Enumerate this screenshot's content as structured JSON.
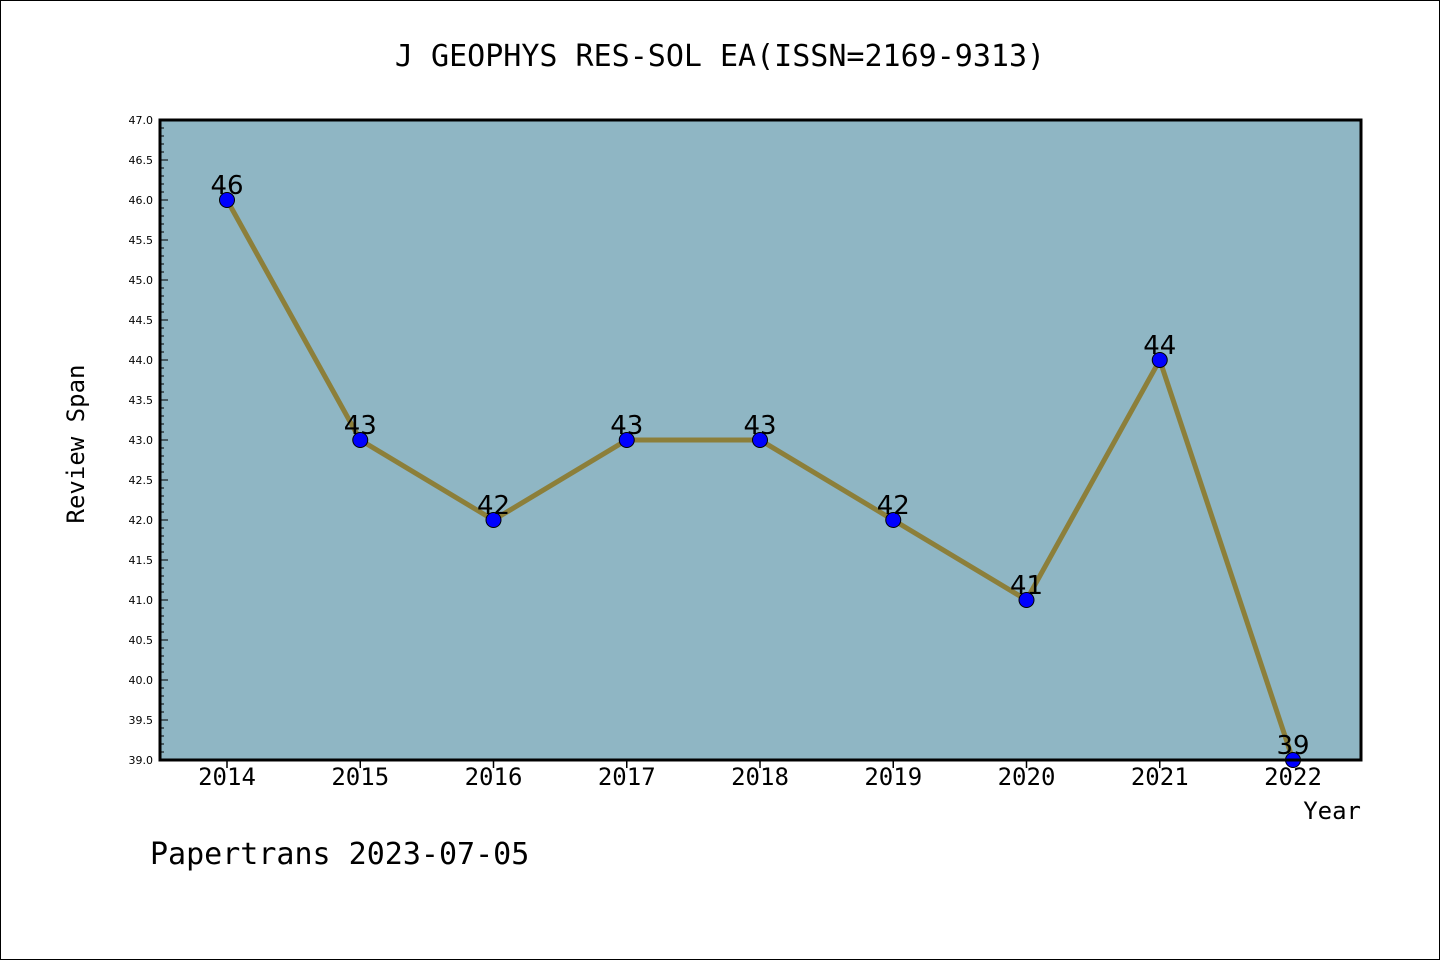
{
  "chart_data": {
    "type": "line",
    "title": "J GEOPHYS RES-SOL EA(ISSN=2169-9313)",
    "xlabel": "Year",
    "ylabel": "Review Span",
    "categories": [
      "2014",
      "2015",
      "2016",
      "2017",
      "2018",
      "2019",
      "2020",
      "2021",
      "2022"
    ],
    "series": [
      {
        "values": [
          46,
          43,
          42,
          43,
          43,
          42,
          41,
          44,
          39
        ]
      }
    ],
    "data_labels": [
      "46",
      "43",
      "42",
      "43",
      "43",
      "42",
      "41",
      "44",
      "39"
    ],
    "ylim": [
      39.0,
      47.0
    ],
    "yticks": [
      "39.0",
      "39.5",
      "40.0",
      "40.5",
      "41.0",
      "41.5",
      "42.0",
      "42.5",
      "43.0",
      "43.5",
      "44.0",
      "44.5",
      "45.0",
      "45.5",
      "46.0",
      "46.5",
      "47.0"
    ],
    "grid": false,
    "colors": {
      "plot_background": "#8fb6c4",
      "line": "#8c7f3a",
      "marker": "#0000ff"
    }
  },
  "footer": "Papertrans 2023-07-05"
}
